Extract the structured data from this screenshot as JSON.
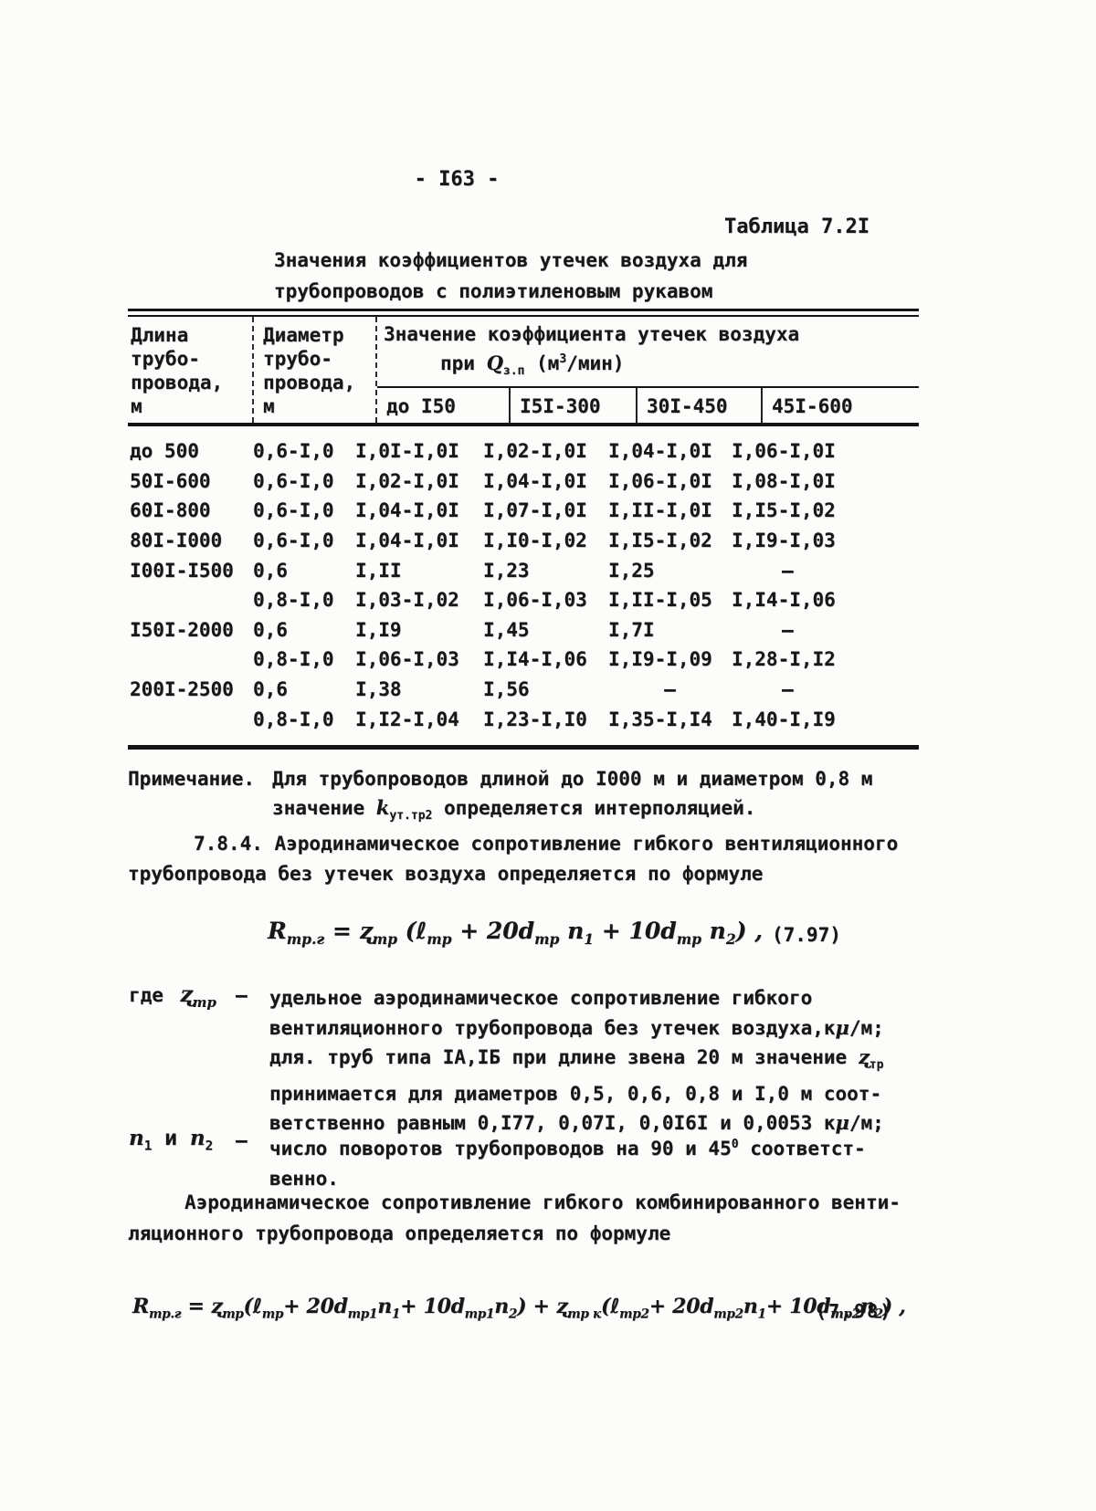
{
  "page": {
    "number": "- I63 -"
  },
  "table": {
    "caption": "Таблица 7.2I",
    "title_lines": [
      "Значения коэффициентов утечек воздуха для",
      "трубопроводов с полиэтиленовым рукавом"
    ],
    "header": {
      "col1_lines": [
        "Длина",
        "трубо-",
        "провода,",
        "м"
      ],
      "col2_lines": [
        "Диаметр",
        "трубо-",
        "провода,",
        "м"
      ],
      "group_title_line1": "Значение коэффициента утечек воздуха",
      "group_title_line2_html": "при <i>Q</i><sub>з.п</sub> (м<sup>3</sup>/мин)",
      "subcols": [
        "до I50",
        "I5I-300",
        "30I-450",
        "45I-600"
      ]
    },
    "rows": [
      [
        "до 500",
        "0,6-I,0",
        "I,0I-I,0I",
        "I,02-I,0I",
        "I,04-I,0I",
        "I,06-I,0I"
      ],
      [
        "50I-600",
        "0,6-I,0",
        "I,02-I,0I",
        "I,04-I,0I",
        "I,06-I,0I",
        "I,08-I,0I"
      ],
      [
        "60I-800",
        "0,6-I,0",
        "I,04-I,0I",
        "I,07-I,0I",
        "I,II-I,0I",
        "I,I5-I,02"
      ],
      [
        "80I-I000",
        "0,6-I,0",
        "I,04-I,0I",
        "I,I0-I,02",
        "I,I5-I,02",
        "I,I9-I,03"
      ],
      [
        "I00I-I500",
        "0,6",
        "I,II",
        "I,23",
        "I,25",
        "–"
      ],
      [
        "",
        "0,8-I,0",
        "I,03-I,02",
        "I,06-I,03",
        "I,II-I,05",
        "I,I4-I,06"
      ],
      [
        "I50I-2000",
        "0,6",
        "I,I9",
        "I,45",
        "I,7I",
        "–"
      ],
      [
        "",
        "0,8-I,0",
        "I,06-I,03",
        "I,I4-I,06",
        "I,I9-I,09",
        "I,28-I,I2"
      ],
      [
        "200I-2500",
        "0,6",
        "I,38",
        "I,56",
        "–",
        "–"
      ],
      [
        "",
        "0,8-I,0",
        "I,I2-I,04",
        "I,23-I,I0",
        "I,35-I,I4",
        "I,40-I,I9"
      ]
    ]
  },
  "note": {
    "label": "Примечание.",
    "line1": "Для трубопроводов длиной до I000 м и диаметром 0,8 м",
    "line2_html": "значение <i>k</i><sub>ут.тр2</sub> определяется интерполяцией."
  },
  "para_784": {
    "line1": "7.8.4. Аэродинамическое сопротивление гибкого вентиляционного",
    "line2": "трубопровода без утечек воздуха определяется по формуле"
  },
  "formula_797": {
    "expr_html": "R<sub>тр.г</sub> = ʐ<sub>тр</sub> (ℓ<sub>тр</sub> + 20d<sub>тр</sub> n<sub>1</sub> + 10d<sub>тр</sub> n<sub>2</sub>) ,",
    "number": "(7.97)"
  },
  "where_block": {
    "where_label": "где",
    "sym1_html": "ʐ<sub>тр</sub>",
    "dash1": "–",
    "sym1_lines_html": [
      "удельное аэродинамическое сопротивление гибкого",
      "вентиляционного трубопровода без утечек воздуха,к<i>μ</i>/м;",
      "для. труб типа IА,IБ при длине звена 20 м значение <i>ʐ</i><sub>тр</sub>",
      "принимается для диаметров 0,5, 0,6, 0,8 и  I,0 м соот-",
      "ветственно равным 0,I77, 0,07I, 0,0I6I и 0,0053 к<i>μ</i>/м;"
    ],
    "sym2_html": "<i>n</i><sub>1</sub> и <i>n</i><sub>2</sub>",
    "dash2": "–",
    "sym2_lines_html": [
      "число поворотов трубопроводов на 90 и 45<sup>0</sup> соответст-",
      "венно."
    ]
  },
  "para_comb": {
    "line1": "Аэродинамическое сопротивление гибкого комбинированного венти-",
    "line2": "ляционного трубопровода определяется по формуле"
  },
  "formula_798": {
    "expr_html": "R<sub>тр.г</sub> = ʐ<sub>тр</sub>(ℓ<sub>тр</sub>+ 20d<sub>тр1</sub>n<sub>1</sub>+ 10d<sub>тр1</sub>n<sub>2</sub>) + ʐ<sub>тр к</sub>(ℓ<sub>тр2</sub>+ 20d<sub>тр2</sub>n<sub>1</sub>+ 10d<sub>тр2</sub>n<sub>2</sub>) ,",
    "number": "(7.98)"
  }
}
